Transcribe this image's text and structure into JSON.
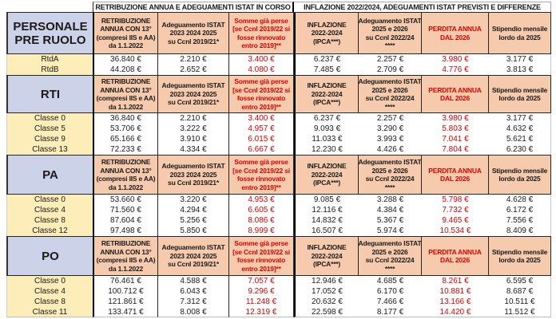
{
  "colors": {
    "header_fill": "#f6cbad",
    "section_label_fill": "#ccd3e9",
    "row_label_fill": "#fdeeb9",
    "red_text": "#dd0000",
    "border": "#262626"
  },
  "band": {
    "left": "RETRIBUZIONE ANNUA E ADEGUAMENTI ISTAT IN CORSO",
    "right": "INFLAZIONE 2022/2024, ADEGUAMENTI ISTAT PREVISTI E DIFFERENZE"
  },
  "columns": [
    {
      "id": "retribuzione-annua",
      "lines": [
        "RETRIBUZIONE",
        "ANNUA CON 13°",
        "(compresi IIS e AA)",
        "da 1.1.2022"
      ],
      "red": false
    },
    {
      "id": "adeguamento-istat-2023-2025",
      "lines": [
        "Adeguamento ISTAT",
        "2023 2024 2025",
        "su Ccnl 2019/21*"
      ],
      "red": false
    },
    {
      "id": "somme-gia-perse",
      "lines": [
        "Somme già perse",
        "[se Ccnl 2019/22 si",
        "fosse rinnovato",
        "entro 2019]**"
      ],
      "red": true
    },
    {
      "id": "inflazione-2022-2024",
      "lines": [
        "INFLAZIONE",
        "2022-2024",
        "(IPCA***)"
      ],
      "red": false
    },
    {
      "id": "adeguamento-istat-2025-2026",
      "lines": [
        "Adeguamento ISTAT",
        "2025 e 2026",
        "su Ccnl 2022/24",
        "****"
      ],
      "red": false
    },
    {
      "id": "perdita-annua",
      "lines": [
        "PERDITA ANNUA",
        "DAL 2026"
      ],
      "red": true
    },
    {
      "id": "stipendio-mensile",
      "lines": [
        "Stipendio mensile",
        "lordo da 2025"
      ],
      "red": false
    }
  ],
  "red_value_columns": [
    2,
    5
  ],
  "sections": [
    {
      "id": "pre-ruolo",
      "label_lines": [
        "PERSONALE",
        "PRE RUOLO"
      ],
      "rows": [
        {
          "label": "RtdA",
          "values": [
            "36.840 €",
            "2.210 €",
            "3.400 €",
            "6.237 €",
            "2.257 €",
            "3.980 €",
            "3.177 €"
          ]
        },
        {
          "label": "RtdB",
          "values": [
            "44.208 €",
            "2.652 €",
            "4.080 €",
            "7.485 €",
            "2.709 €",
            "4.776 €",
            "3.813 €"
          ]
        }
      ]
    },
    {
      "id": "rti",
      "label_lines": [
        "RTI"
      ],
      "rows": [
        {
          "label": "Classe 0",
          "values": [
            "36.840 €",
            "2.210 €",
            "3.400 €",
            "6.237 €",
            "2.257 €",
            "3.980 €",
            "3.177 €"
          ]
        },
        {
          "label": "Classe 5",
          "values": [
            "53.706 €",
            "3.222 €",
            "4.957 €",
            "9.093 €",
            "3.290 €",
            "5.803 €",
            "4.632 €"
          ]
        },
        {
          "label": "Classe 9",
          "values": [
            "65.166 €",
            "3.910 €",
            "6.015 €",
            "11.033 €",
            "3.993 €",
            "7.041 €",
            "5.621 €"
          ]
        },
        {
          "label": "Classe 13",
          "values": [
            "72.233 €",
            "4.334 €",
            "6.667 €",
            "12.230 €",
            "4.426 €",
            "7.804 €",
            "6.230 €"
          ]
        }
      ]
    },
    {
      "id": "pa",
      "label_lines": [
        "PA"
      ],
      "rows": [
        {
          "label": "Classe 0",
          "values": [
            "53.660 €",
            "3.220 €",
            "4.953 €",
            "9.085 €",
            "3.288 €",
            "5.798 €",
            "4.628 €"
          ]
        },
        {
          "label": "Classe 4",
          "values": [
            "71.560 €",
            "4.294 €",
            "6.605 €",
            "12.116 €",
            "4.384 €",
            "7.732 €",
            "6.172 €"
          ]
        },
        {
          "label": "Classe 8",
          "values": [
            "87.604 €",
            "5.256 €",
            "8.086 €",
            "14.832 €",
            "5.367 €",
            "9.465 €",
            "7.556 €"
          ]
        },
        {
          "label": "Classe 12",
          "values": [
            "97.498 €",
            "5.850 €",
            "8.999 €",
            "16.507 €",
            "5.974 €",
            "10.534 €",
            "8.409 €"
          ]
        }
      ]
    },
    {
      "id": "po",
      "label_lines": [
        "PO"
      ],
      "rows": [
        {
          "label": "Classe 0",
          "values": [
            "76.461 €",
            "4.588 €",
            "7.057 €",
            "12.946 €",
            "4.685 €",
            "8.261 €",
            "6.595 €"
          ]
        },
        {
          "label": "Classe 4",
          "values": [
            "100.712 €",
            "6.043 €",
            "9.296 €",
            "17.052 €",
            "6.170 €",
            "10.881 €",
            "8.687 €"
          ]
        },
        {
          "label": "Classe 8",
          "values": [
            "121.861 €",
            "7.312 €",
            "11.248 €",
            "20.632 €",
            "7.466 €",
            "13.166 €",
            "10.511 €"
          ]
        },
        {
          "label": "Classe 11",
          "values": [
            "133.471 €",
            "8.008 €",
            "12.319 €",
            "22.598 €",
            "8.177 €",
            "14.420 €",
            "11.512 €"
          ]
        }
      ]
    }
  ]
}
